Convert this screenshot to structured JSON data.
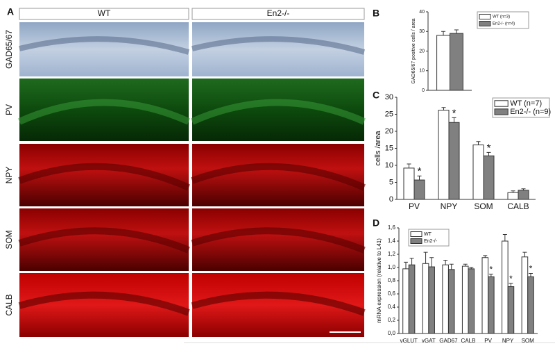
{
  "panel_a": {
    "letter": "A",
    "columns": [
      "WT",
      "En2-/-"
    ],
    "rows": [
      "GAD65/67",
      "PV",
      "NPY",
      "SOM",
      "CALB"
    ]
  },
  "chart_data": [
    {
      "type": "bar",
      "panel": "B",
      "y_label": "GAD65/67 positive cells / area",
      "categories": [
        null
      ],
      "series": [
        {
          "name": "WT (n=3)",
          "color": "#ffffff",
          "values": [
            28
          ],
          "errors": [
            2
          ]
        },
        {
          "name": "En2-/- (n=4)",
          "color": "#808080",
          "values": [
            29
          ],
          "errors": [
            1.8
          ]
        }
      ],
      "ylim": [
        0,
        40
      ],
      "yticks": [
        0,
        10,
        20,
        30,
        40
      ]
    },
    {
      "type": "bar",
      "panel": "C",
      "y_label": "cells /area",
      "categories": [
        "PV",
        "NPY",
        "SOM",
        "CALB"
      ],
      "series": [
        {
          "name": "WT (n=7)",
          "color": "#ffffff",
          "values": [
            9.2,
            26.2,
            16,
            2
          ],
          "errors": [
            1.2,
            0.8,
            1,
            0.5
          ]
        },
        {
          "name": "En2-/- (n=9)",
          "color": "#808080",
          "values": [
            5.7,
            22.6,
            12.8,
            2.7
          ],
          "errors": [
            1.2,
            1.4,
            1,
            0.4
          ],
          "marks": [
            "*",
            "*",
            "*",
            null
          ]
        }
      ],
      "ylim": [
        0,
        30
      ],
      "yticks": [
        0,
        5,
        10,
        15,
        20,
        25,
        30
      ]
    },
    {
      "type": "bar",
      "panel": "D",
      "y_label": "mRNA expression (relative to L41)",
      "categories": [
        "vGLUT",
        "vGAT",
        "GAD67",
        "CALB",
        "PV",
        "NPY",
        "SOM"
      ],
      "series": [
        {
          "name": "WT",
          "color": "#ffffff",
          "values": [
            0.98,
            1.06,
            1.04,
            1.02,
            1.15,
            1.4,
            1.16
          ],
          "errors": [
            0.1,
            0.17,
            0.07,
            0.03,
            0.03,
            0.1,
            0.07
          ]
        },
        {
          "name": "En2-/-",
          "color": "#808080",
          "values": [
            1.04,
            1.01,
            0.97,
            0.98,
            0.86,
            0.71,
            0.86
          ],
          "errors": [
            0.1,
            0.14,
            0.08,
            0.02,
            0.04,
            0.05,
            0.05
          ],
          "marks": [
            null,
            null,
            null,
            null,
            "*",
            "*",
            "*"
          ]
        }
      ],
      "ylim": [
        0,
        1.6
      ],
      "yticks": [
        {
          "value": 0,
          "label": "0,0"
        },
        {
          "value": 0.2,
          "label": "0,2"
        },
        {
          "value": 0.4,
          "label": "0,4"
        },
        {
          "value": 0.6,
          "label": "0,6"
        },
        {
          "value": 0.8,
          "label": "0,8"
        },
        {
          "value": 1,
          "label": "1,0"
        },
        {
          "value": 1.2,
          "label": "1,2"
        },
        {
          "value": 1.4,
          "label": "1,4"
        },
        {
          "value": 1.6,
          "label": "1,6"
        }
      ]
    }
  ]
}
